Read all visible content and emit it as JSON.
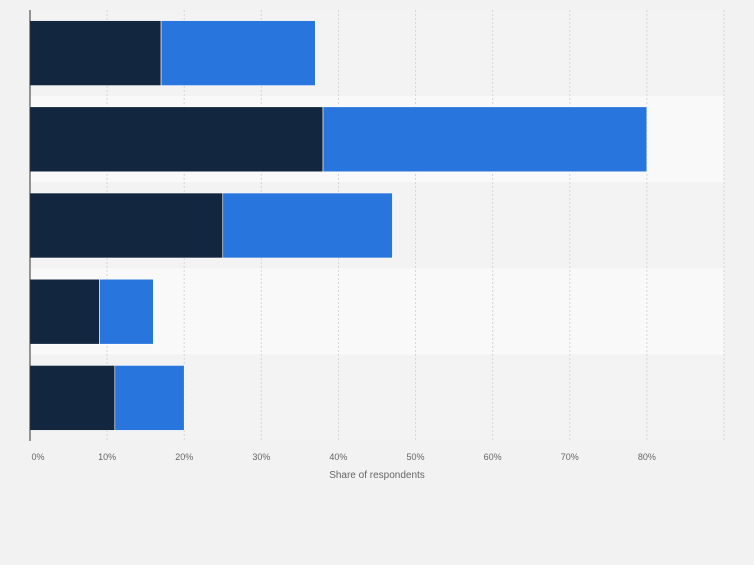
{
  "chart_data": {
    "type": "bar",
    "orientation": "horizontal",
    "stacked": true,
    "categories": [
      "",
      "",
      "",
      "",
      ""
    ],
    "series": [
      {
        "values": [
          17,
          38,
          25,
          9,
          11
        ],
        "color": "#12263f"
      },
      {
        "values": [
          20,
          42,
          22,
          7,
          9
        ],
        "color": "#2876dd"
      }
    ],
    "xlabel": "Share of respondents",
    "xticks": [
      "0%",
      "10%",
      "20%",
      "30%",
      "40%",
      "50%",
      "60%",
      "70%",
      "80%"
    ],
    "xlim": [
      0,
      90
    ],
    "grid": true,
    "legend": "none"
  }
}
